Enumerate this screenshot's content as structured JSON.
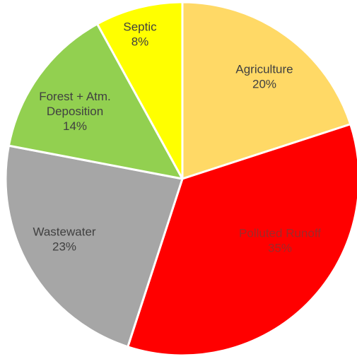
{
  "chart_data": {
    "type": "pie",
    "slices": [
      {
        "label": "Agriculture",
        "value": 20,
        "percent_label": "20%",
        "color": "#FFD966",
        "text_color": "#404040"
      },
      {
        "label": "Polluted Runoff",
        "value": 35,
        "percent_label": "35%",
        "color": "#FF0000",
        "text_color": "#9E2A2A"
      },
      {
        "label": "Wastewater",
        "value": 23,
        "percent_label": "23%",
        "color": "#A6A6A6",
        "text_color": "#404040"
      },
      {
        "label": "Forest + Atm. Deposition",
        "label_lines": [
          "Forest + Atm.",
          "Deposition"
        ],
        "value": 14,
        "percent_label": "14%",
        "color": "#92D050",
        "text_color": "#404040"
      },
      {
        "label": "Septic",
        "value": 8,
        "percent_label": "8%",
        "color": "#FFFF00",
        "text_color": "#404040"
      }
    ],
    "start": "top (12 o'clock)",
    "direction": "clockwise",
    "slice_border_color": "#FFFFFF"
  }
}
